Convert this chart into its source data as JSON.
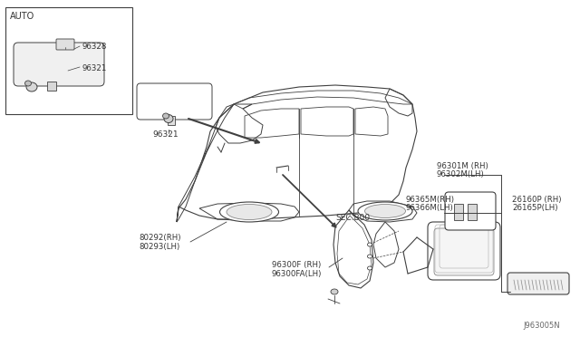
{
  "bg_color": "#ffffff",
  "line_color": "#404040",
  "text_color": "#333333",
  "fig_width": 6.4,
  "fig_height": 3.72,
  "dpi": 100,
  "watermark": "J963005N",
  "labels": {
    "auto_box": "AUTO",
    "part_96328": "96328",
    "part_96321_inset": "96321",
    "part_96321": "96321",
    "sec_800": "SEC.B00",
    "part_80292": "80292(RH)",
    "part_80293": "80293(LH)",
    "part_96300f": "96300F (RH)",
    "part_96300fa": "96300FA(LH)",
    "part_96301m": "96301M (RH)",
    "part_96302m": "96302M(LH)",
    "part_96365m": "96365M(RH)",
    "part_96366m": "96366M(LH)",
    "part_26160p": "26160P (RH)",
    "part_26165p": "26165P(LH)"
  }
}
